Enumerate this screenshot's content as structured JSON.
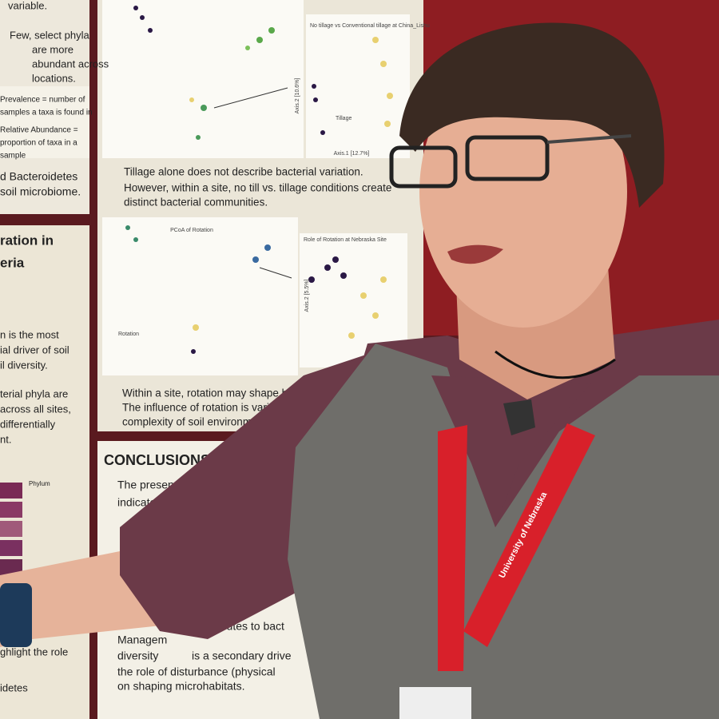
{
  "poster": {
    "left_panel_top": {
      "lines": [
        "variable.",
        "Few, select phyla",
        "are more",
        "abundant across",
        "locations.",
        "Prevalence = number of",
        "samples a taxa is found in",
        "Relative Abundance =",
        "proportion of taxa in a",
        "sample",
        "d Bacteroidetes",
        "soil microbiome."
      ]
    },
    "left_panel_bottom": {
      "heading": [
        "ration in",
        "eria"
      ],
      "lines": [
        "n is the most",
        "ial driver of soil",
        "il diversity.",
        "terial phyla are",
        "across all sites,",
        "differentially",
        "nt.",
        "ghlight the role",
        "idetes"
      ]
    },
    "tillage_figure": {
      "title": "No tillage vs Conventional tillage at China_Lishu",
      "y_axis": "Axis.2 [10.6%]",
      "x_axis": "Axis.1 [12.7%]",
      "legend_title": "Tillage"
    },
    "tillage_bullets": [
      "Tillage alone does not describe bacterial variation.",
      "However, within a site, no till vs. tillage conditions create",
      "distinct bacterial communities."
    ],
    "rotation_figure": {
      "title": "PCoA of Rotation",
      "inset_title": "Role of Rotation at Nebraska Site",
      "y_axis": "Axis.2 [5.5%]",
      "legend_title": "Rotation"
    },
    "rotation_bullets": [
      "Within a site, rotation may shape bacteri",
      "The influence of rotation is variable, l",
      "complexity of soil environments"
    ],
    "conclusions": {
      "heading": "CONCLUSIONS",
      "lines": [
        "The presen",
        "indicates a c",
        "ributes to bact",
        "Managem",
        "diversity",
        "is a secondary drive",
        "the role of disturbance (physical",
        "on shaping microhabitats."
      ]
    },
    "phylum_legend_title": "Phylum"
  },
  "lanyard": {
    "text": "University of Nebraska"
  }
}
